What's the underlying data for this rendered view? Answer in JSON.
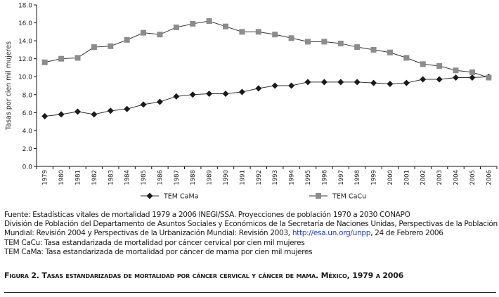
{
  "chart_data": {
    "type": "line",
    "title": "",
    "xlabel": "",
    "ylabel": "Tasas por cien mil mujeres",
    "ylim": [
      0,
      18
    ],
    "yticks": [
      "0.0",
      "2.0",
      "4.0",
      "6.0",
      "8.0",
      "10.0",
      "12.0",
      "14.0",
      "16.0",
      "18.0"
    ],
    "grid": false,
    "legend_position": "bottom",
    "categories": [
      "1979",
      "1980",
      "1981",
      "1982",
      "1983",
      "1984",
      "1985",
      "1986",
      "1987",
      "1988",
      "1989",
      "1990",
      "1991",
      "1992",
      "1993",
      "1994",
      "1995",
      "1996",
      "1997",
      "1998",
      "1999",
      "2000",
      "2001",
      "2002",
      "2003",
      "2004",
      "2005",
      "2006"
    ],
    "series": [
      {
        "name": "TEM CaMa",
        "marker": "diamond",
        "color": "#1a1a1a",
        "values": [
          5.6,
          5.8,
          6.1,
          5.8,
          6.2,
          6.4,
          6.9,
          7.2,
          7.8,
          8.0,
          8.1,
          8.1,
          8.3,
          8.7,
          9.0,
          9.0,
          9.4,
          9.4,
          9.4,
          9.4,
          9.3,
          9.2,
          9.3,
          9.7,
          9.7,
          9.9,
          9.9,
          10.0
        ]
      },
      {
        "name": "TEM CaCu",
        "marker": "square",
        "color": "#8c8c8c",
        "values": [
          11.6,
          12.0,
          12.1,
          13.3,
          13.4,
          14.1,
          14.9,
          14.7,
          15.5,
          15.9,
          16.2,
          15.6,
          15.0,
          15.0,
          14.7,
          14.3,
          13.9,
          13.9,
          13.7,
          13.3,
          13.0,
          12.7,
          12.1,
          11.4,
          11.2,
          10.7,
          10.5,
          9.9
        ]
      }
    ]
  },
  "notes": {
    "line1": "Fuente: Estadísticas vitales de mortalidad 1979 a 2006 INEGI/SSA. Proyecciones de población 1970 a 2030 CONAPO",
    "line2": "División de Población del Departamento de Asuntos Sociales y Económicos de la Secretaría de Naciones Unidas, Perspectivas de la Población",
    "line3_pre": "Mundial: Revisión 2004 y Perspectivas de la Urbanización Mundial: Revisión 2003, ",
    "line3_link": "http://esa.un.org/unpp",
    "line3_post": ", 24 de Febrero 2006",
    "line4": "TEM CaCu: Tasa estandarizada de mortalidad por cáncer cervical por cien mil mujeres",
    "line5": "TEM CaMa: Tasa estandarizada de mortalidad por cáncer de mama por cien mil mujeres"
  },
  "caption": "Figura 2. Tasas estandarizadas de mortalidad por cáncer cervical y cáncer de mama. México, 1979 a 2006"
}
